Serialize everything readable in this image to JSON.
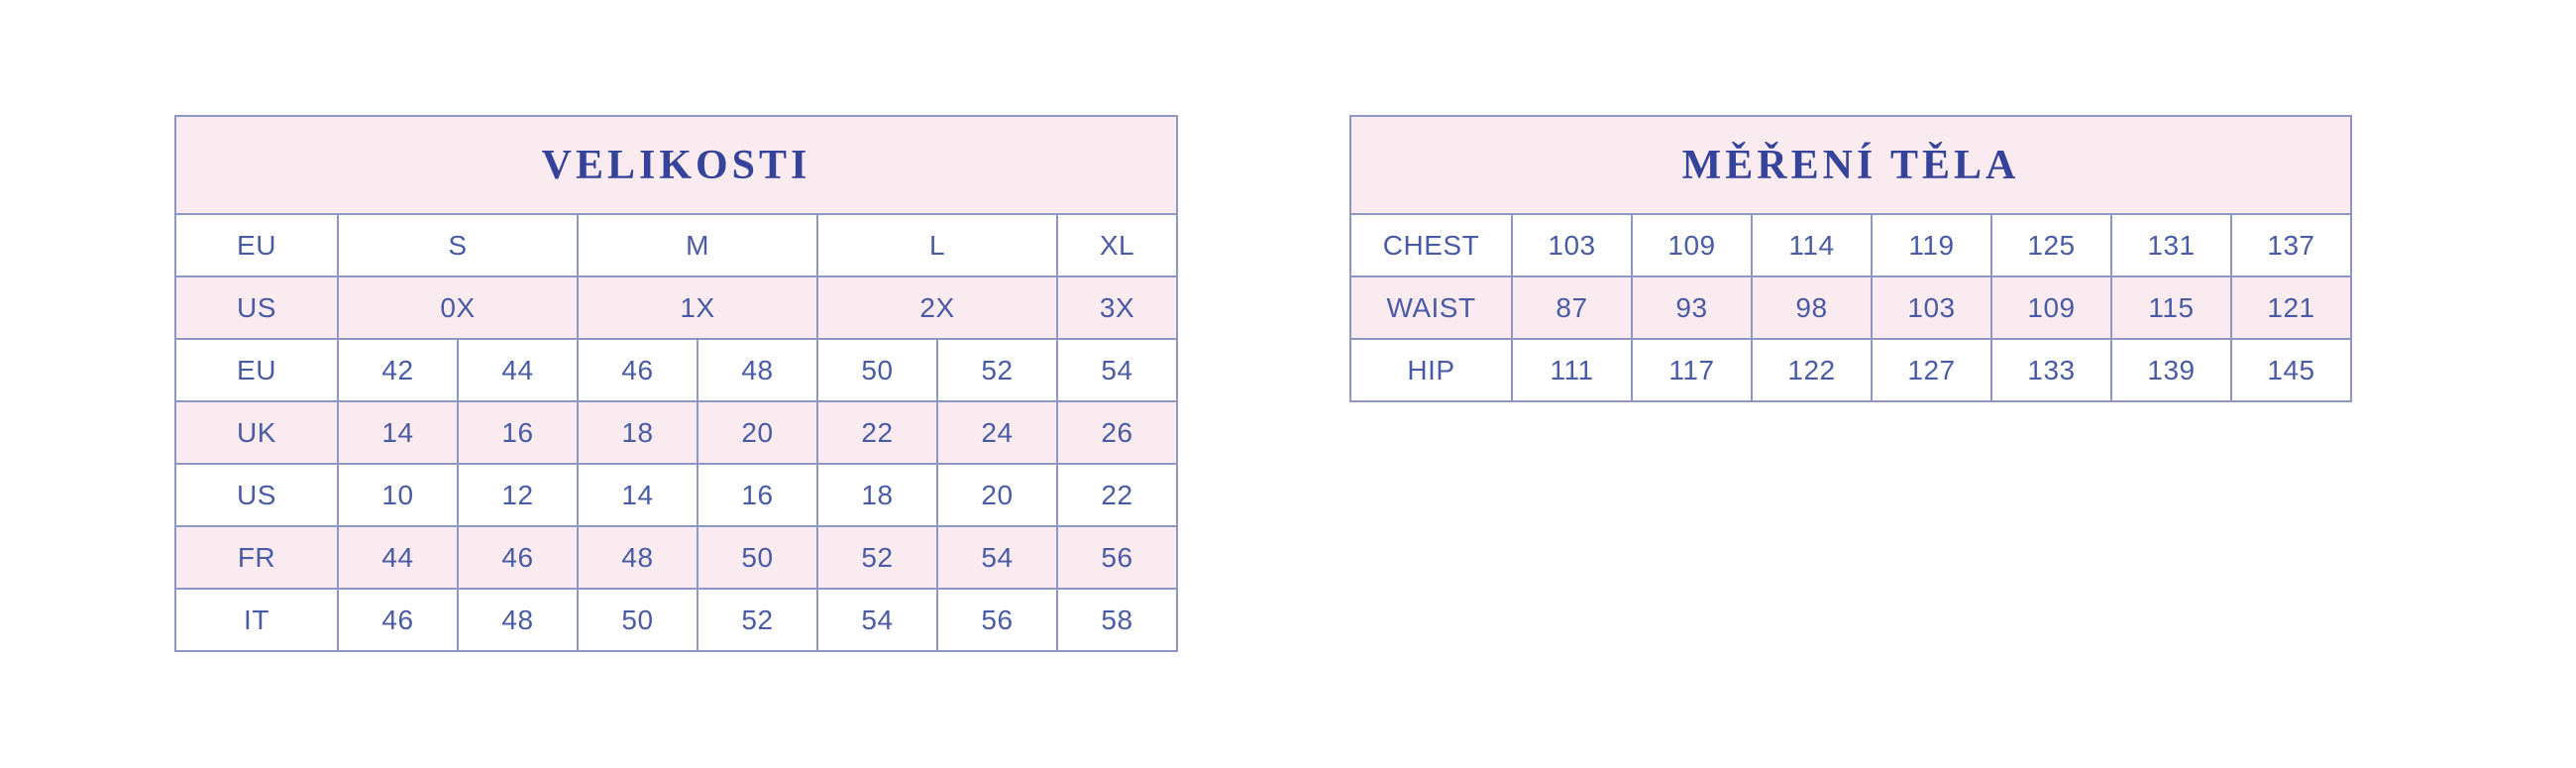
{
  "colors": {
    "pink": "#f9ebef",
    "border": "#8e96c2",
    "cell_text": "#4a5ba5",
    "title_text": "#35439a",
    "background": "#ffffff"
  },
  "sizes_table": {
    "title": "VELIKOSTI",
    "rows": [
      {
        "label": "EU",
        "shaded": false,
        "cells": [
          {
            "text": "S",
            "span": 2
          },
          {
            "text": "M",
            "span": 2
          },
          {
            "text": "L",
            "span": 2
          },
          {
            "text": "XL",
            "span": 1
          }
        ]
      },
      {
        "label": "US",
        "shaded": true,
        "cells": [
          {
            "text": "0X",
            "span": 2
          },
          {
            "text": "1X",
            "span": 2
          },
          {
            "text": "2X",
            "span": 2
          },
          {
            "text": "3X",
            "span": 1
          }
        ]
      },
      {
        "label": "EU",
        "shaded": false,
        "cells": [
          {
            "text": "42",
            "span": 1
          },
          {
            "text": "44",
            "span": 1
          },
          {
            "text": "46",
            "span": 1
          },
          {
            "text": "48",
            "span": 1
          },
          {
            "text": "50",
            "span": 1
          },
          {
            "text": "52",
            "span": 1
          },
          {
            "text": "54",
            "span": 1
          }
        ]
      },
      {
        "label": "UK",
        "shaded": true,
        "cells": [
          {
            "text": "14",
            "span": 1
          },
          {
            "text": "16",
            "span": 1
          },
          {
            "text": "18",
            "span": 1
          },
          {
            "text": "20",
            "span": 1
          },
          {
            "text": "22",
            "span": 1
          },
          {
            "text": "24",
            "span": 1
          },
          {
            "text": "26",
            "span": 1
          }
        ]
      },
      {
        "label": "US",
        "shaded": false,
        "cells": [
          {
            "text": "10",
            "span": 1
          },
          {
            "text": "12",
            "span": 1
          },
          {
            "text": "14",
            "span": 1
          },
          {
            "text": "16",
            "span": 1
          },
          {
            "text": "18",
            "span": 1
          },
          {
            "text": "20",
            "span": 1
          },
          {
            "text": "22",
            "span": 1
          }
        ]
      },
      {
        "label": "FR",
        "shaded": true,
        "cells": [
          {
            "text": "44",
            "span": 1
          },
          {
            "text": "46",
            "span": 1
          },
          {
            "text": "48",
            "span": 1
          },
          {
            "text": "50",
            "span": 1
          },
          {
            "text": "52",
            "span": 1
          },
          {
            "text": "54",
            "span": 1
          },
          {
            "text": "56",
            "span": 1
          }
        ]
      },
      {
        "label": "IT",
        "shaded": false,
        "cells": [
          {
            "text": "46",
            "span": 1
          },
          {
            "text": "48",
            "span": 1
          },
          {
            "text": "50",
            "span": 1
          },
          {
            "text": "52",
            "span": 1
          },
          {
            "text": "54",
            "span": 1
          },
          {
            "text": "56",
            "span": 1
          },
          {
            "text": "58",
            "span": 1
          }
        ]
      }
    ]
  },
  "measurements_table": {
    "title": "MĚŘENÍ TĚLA",
    "rows": [
      {
        "label": "CHEST",
        "shaded": false,
        "cells": [
          {
            "text": "103",
            "span": 1
          },
          {
            "text": "109",
            "span": 1
          },
          {
            "text": "114",
            "span": 1
          },
          {
            "text": "119",
            "span": 1
          },
          {
            "text": "125",
            "span": 1
          },
          {
            "text": "131",
            "span": 1
          },
          {
            "text": "137",
            "span": 1
          }
        ]
      },
      {
        "label": "WAIST",
        "shaded": true,
        "cells": [
          {
            "text": "87",
            "span": 1
          },
          {
            "text": "93",
            "span": 1
          },
          {
            "text": "98",
            "span": 1
          },
          {
            "text": "103",
            "span": 1
          },
          {
            "text": "109",
            "span": 1
          },
          {
            "text": "115",
            "span": 1
          },
          {
            "text": "121",
            "span": 1
          }
        ]
      },
      {
        "label": "HIP",
        "shaded": false,
        "cells": [
          {
            "text": "111",
            "span": 1
          },
          {
            "text": "117",
            "span": 1
          },
          {
            "text": "122",
            "span": 1
          },
          {
            "text": "127",
            "span": 1
          },
          {
            "text": "133",
            "span": 1
          },
          {
            "text": "139",
            "span": 1
          },
          {
            "text": "145",
            "span": 1
          }
        ]
      }
    ]
  }
}
